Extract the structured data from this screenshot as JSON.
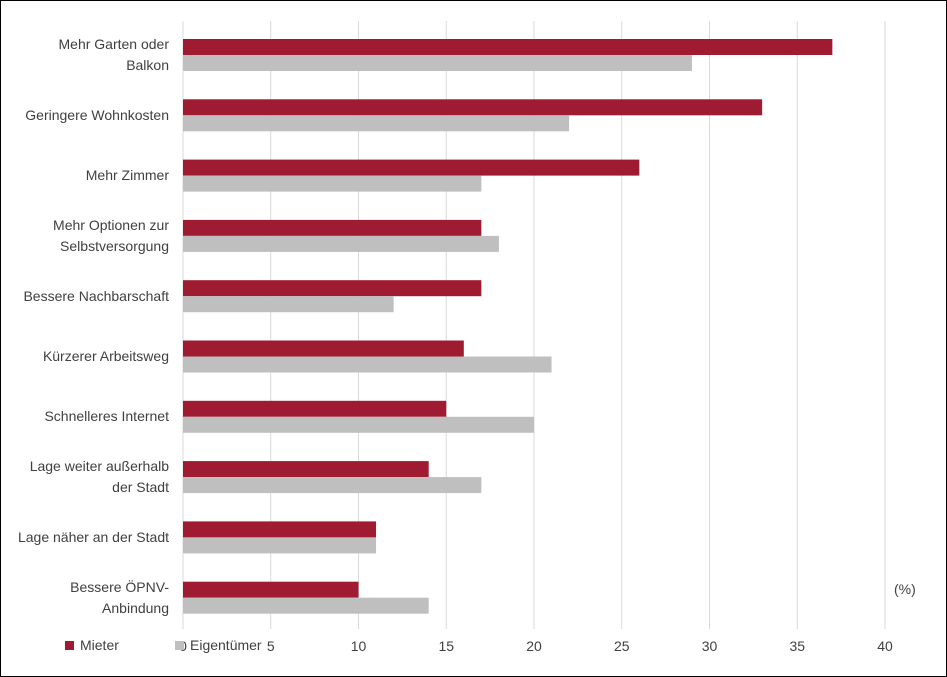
{
  "chart_data": {
    "type": "bar",
    "orientation": "horizontal",
    "categories": [
      "Mehr Garten oder\nBalkon",
      "Geringere Wohnkosten",
      "Mehr Zimmer",
      "Mehr Optionen zur\nSelbstversorgung",
      "Bessere Nachbarschaft",
      "Kürzerer Arbeitsweg",
      "Schnelleres Internet",
      "Lage weiter außerhalb\nder Stadt",
      "Lage näher an der Stadt",
      "Bessere ÖPNV-\nAnbindung"
    ],
    "series": [
      {
        "name": "Mieter",
        "color": "#9e1b32",
        "values": [
          37,
          33,
          26,
          17,
          17,
          16,
          15,
          14,
          11,
          10
        ]
      },
      {
        "name": "Eigentümer",
        "color": "#bfbfbf",
        "values": [
          29,
          22,
          17,
          18,
          12,
          21,
          20,
          17,
          11,
          14
        ]
      }
    ],
    "x_ticks": [
      0,
      5,
      10,
      15,
      20,
      25,
      30,
      35,
      40
    ],
    "xlim": [
      0,
      40
    ],
    "unit_label": "(%)",
    "grid": "vertical",
    "legend_position": "bottom-left"
  }
}
